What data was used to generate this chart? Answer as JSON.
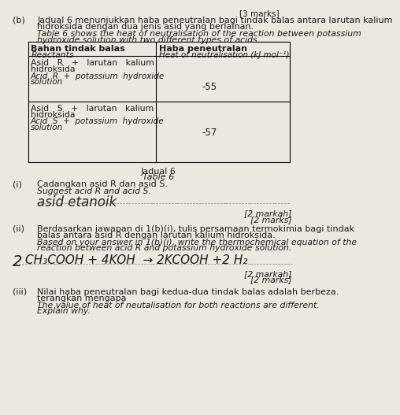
{
  "bg_color": "#ede8df",
  "text_color": "#1a1a1a",
  "top_marks": "[3 marks]",
  "b_label": "(b)",
  "malay_line1": "Jadual 6 menunjukkan haba peneutralan bagi tindak balas antara larutan kalium",
  "malay_line2": "hidroksida dengan dua jenis asid yang berlainan.",
  "eng_line1": "Table 6 shows the heat of neutralisation of the reaction between potassium",
  "eng_line2": "hydroxide solution with two different types of acids.",
  "hdr_left1": "Bahan tindak balas",
  "hdr_left2": "Reactants",
  "hdr_right1": "Haba peneutralan",
  "hdr_right2": "Heat of neutralisation (kJ mol⁻¹)",
  "r1l1": "Asid   R   +   larutan   kalium",
  "r1l2": "hidroksida",
  "r1l3": "Acid  R  +  potassium  hydroxide",
  "r1l4": "solution",
  "r1v": "-55",
  "r2l1": "Asid   S   +   larutan   kalium",
  "r2l2": "hidroksida",
  "r2l3": "Acid  S  +  potassium  hydroxide",
  "r2l4": "solution",
  "r2v": "-57",
  "cap_malay": "Jadual 6",
  "cap_eng": "Table 6",
  "qi_label": "(i)",
  "qi_malay": "Cadangkan asid R dan asid S.",
  "qi_eng": "Suggest acid R and acid S.",
  "qi_answer": "asid etanoik",
  "qi_m1": "[2 markah]",
  "qi_m2": "[2 marks]",
  "qii_label": "(ii)",
  "qii_m1": "Berdasarkan jawapan di 1(b)(i), tulis persamaan termokimia bagi tindak",
  "qii_m2": "balas antara asid R dengan larutan kalium hidroksida.",
  "qii_e1": "Based on your answer in 1(b)(i), write the thermochemical equation of the",
  "qii_e2": "reaction between acid R and potassium hydroxide solution.",
  "qii_ans1": "2",
  "qii_ans2": "CH₃COOH + 4KOH  → 2KCOOH +2 H₂",
  "qii_mk1": "[2 markah]",
  "qii_mk2": "[2 marks]",
  "qiii_label": "(iii)",
  "qiii_m1": "Nilai haba peneutralan bagi kedua-dua tindak balas adalah berbeza.",
  "qiii_m2": "terangkan mengapa",
  "qiii_e1": "The value of heat of neutalisation for both reactions are different.",
  "qiii_e2": "Explain why."
}
